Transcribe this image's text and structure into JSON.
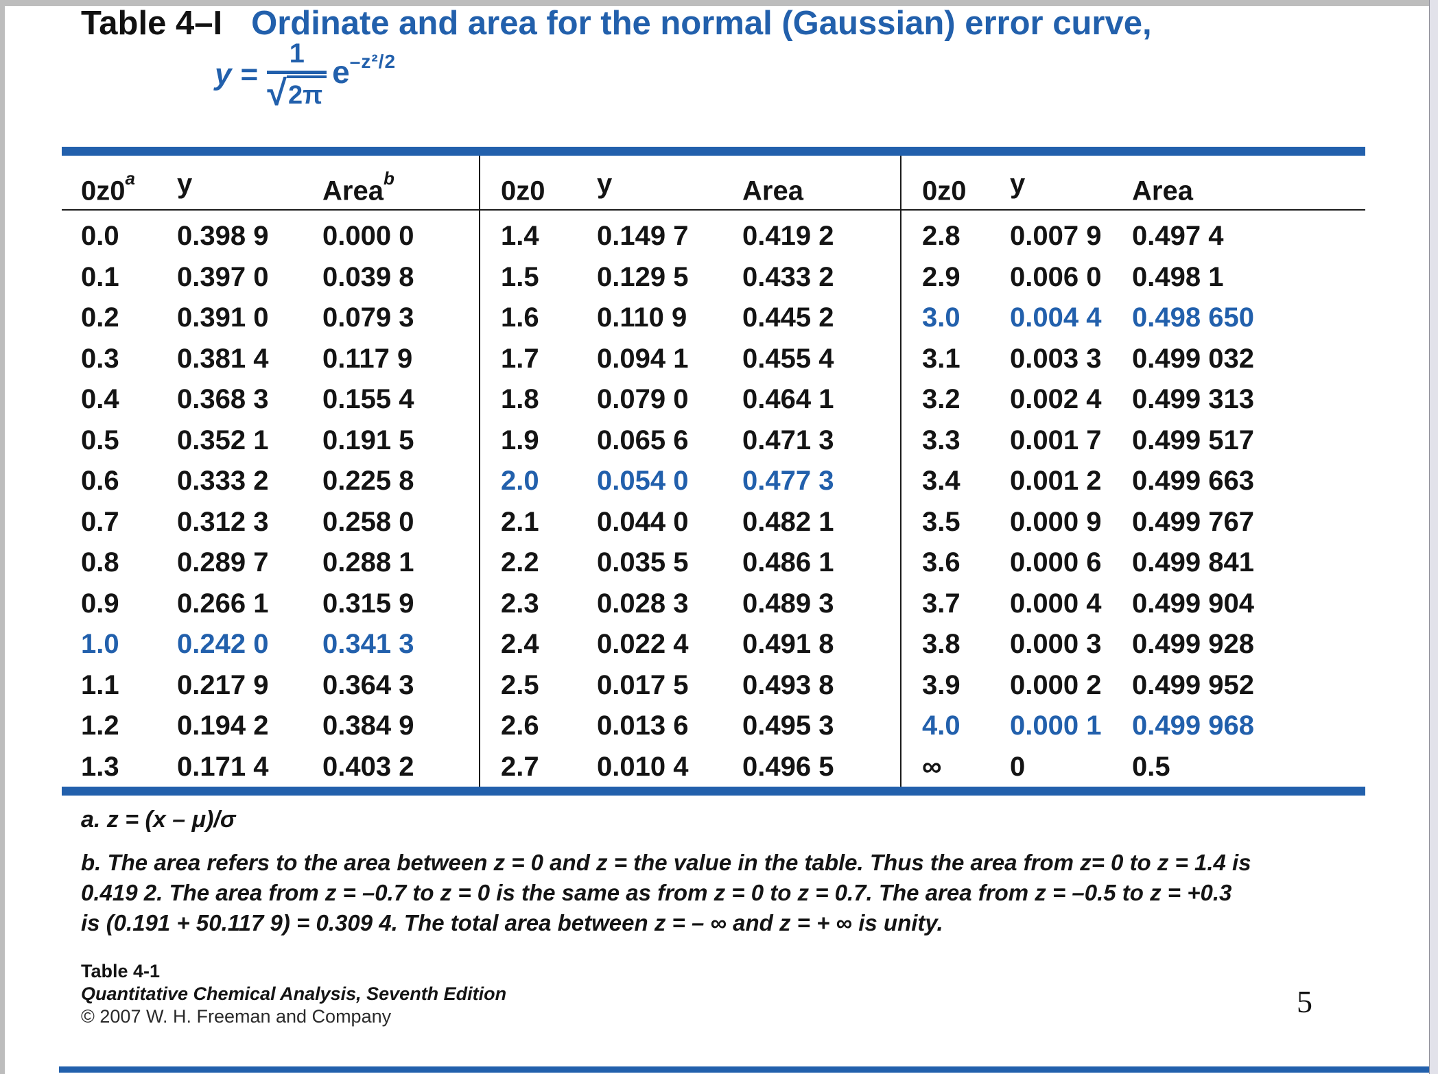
{
  "title": {
    "label": "Table 4–I",
    "text": "Ordinate and area for the normal (Gaussian) error curve,"
  },
  "formula": {
    "lhs": "y =",
    "numerator": "1",
    "radical": "√",
    "radicand": "2π",
    "exp_base": "e",
    "exponent": "–z²/2"
  },
  "table": {
    "groups": [
      {
        "headers": {
          "z": "0z0",
          "z_sup": "a",
          "y": "y",
          "area": "Area",
          "area_sup": "b"
        },
        "rows": [
          {
            "z": "0.0",
            "y": "0.398 9",
            "area": "0.000 0",
            "hl": false
          },
          {
            "z": "0.1",
            "y": "0.397 0",
            "area": "0.039 8",
            "hl": false
          },
          {
            "z": "0.2",
            "y": "0.391 0",
            "area": "0.079 3",
            "hl": false
          },
          {
            "z": "0.3",
            "y": "0.381 4",
            "area": "0.117 9",
            "hl": false
          },
          {
            "z": "0.4",
            "y": "0.368 3",
            "area": "0.155 4",
            "hl": false
          },
          {
            "z": "0.5",
            "y": "0.352 1",
            "area": "0.191 5",
            "hl": false
          },
          {
            "z": "0.6",
            "y": "0.333 2",
            "area": "0.225 8",
            "hl": false
          },
          {
            "z": "0.7",
            "y": "0.312 3",
            "area": "0.258 0",
            "hl": false
          },
          {
            "z": "0.8",
            "y": "0.289 7",
            "area": "0.288 1",
            "hl": false
          },
          {
            "z": "0.9",
            "y": "0.266 1",
            "area": "0.315 9",
            "hl": false
          },
          {
            "z": "1.0",
            "y": "0.242 0",
            "area": "0.341 3",
            "hl": true
          },
          {
            "z": "1.1",
            "y": "0.217 9",
            "area": "0.364 3",
            "hl": false
          },
          {
            "z": "1.2",
            "y": "0.194 2",
            "area": "0.384 9",
            "hl": false
          },
          {
            "z": "1.3",
            "y": "0.171 4",
            "area": "0.403 2",
            "hl": false
          }
        ]
      },
      {
        "headers": {
          "z": "0z0",
          "z_sup": "",
          "y": "y",
          "area": "Area",
          "area_sup": ""
        },
        "rows": [
          {
            "z": "1.4",
            "y": "0.149 7",
            "area": "0.419 2",
            "hl": false
          },
          {
            "z": "1.5",
            "y": "0.129 5",
            "area": "0.433 2",
            "hl": false
          },
          {
            "z": "1.6",
            "y": "0.110 9",
            "area": "0.445 2",
            "hl": false
          },
          {
            "z": "1.7",
            "y": "0.094 1",
            "area": "0.455 4",
            "hl": false
          },
          {
            "z": "1.8",
            "y": "0.079 0",
            "area": "0.464 1",
            "hl": false
          },
          {
            "z": "1.9",
            "y": "0.065 6",
            "area": "0.471 3",
            "hl": false
          },
          {
            "z": "2.0",
            "y": "0.054 0",
            "area": "0.477 3",
            "hl": true
          },
          {
            "z": "2.1",
            "y": "0.044 0",
            "area": "0.482 1",
            "hl": false
          },
          {
            "z": "2.2",
            "y": "0.035 5",
            "area": "0.486 1",
            "hl": false
          },
          {
            "z": "2.3",
            "y": "0.028 3",
            "area": "0.489 3",
            "hl": false
          },
          {
            "z": "2.4",
            "y": "0.022 4",
            "area": "0.491 8",
            "hl": false
          },
          {
            "z": "2.5",
            "y": "0.017 5",
            "area": "0.493 8",
            "hl": false
          },
          {
            "z": "2.6",
            "y": "0.013 6",
            "area": "0.495 3",
            "hl": false
          },
          {
            "z": "2.7",
            "y": "0.010 4",
            "area": "0.496 5",
            "hl": false
          }
        ]
      },
      {
        "headers": {
          "z": "0z0",
          "z_sup": "",
          "y": "y",
          "area": "Area",
          "area_sup": ""
        },
        "rows": [
          {
            "z": "2.8",
            "y": "0.007 9",
            "area": "0.497 4",
            "hl": false
          },
          {
            "z": "2.9",
            "y": "0.006 0",
            "area": "0.498 1",
            "hl": false
          },
          {
            "z": "3.0",
            "y": "0.004 4",
            "area": "0.498 650",
            "hl": true
          },
          {
            "z": "3.1",
            "y": "0.003 3",
            "area": "0.499 032",
            "hl": false
          },
          {
            "z": "3.2",
            "y": "0.002 4",
            "area": "0.499 313",
            "hl": false
          },
          {
            "z": "3.3",
            "y": "0.001 7",
            "area": "0.499 517",
            "hl": false
          },
          {
            "z": "3.4",
            "y": "0.001 2",
            "area": "0.499 663",
            "hl": false
          },
          {
            "z": "3.5",
            "y": "0.000 9",
            "area": "0.499 767",
            "hl": false
          },
          {
            "z": "3.6",
            "y": "0.000 6",
            "area": "0.499 841",
            "hl": false
          },
          {
            "z": "3.7",
            "y": "0.000 4",
            "area": "0.499 904",
            "hl": false
          },
          {
            "z": "3.8",
            "y": "0.000 3",
            "area": "0.499 928",
            "hl": false
          },
          {
            "z": "3.9",
            "y": "0.000 2",
            "area": "0.499 952",
            "hl": false
          },
          {
            "z": "4.0",
            "y": "0.000 1",
            "area": "0.499 968",
            "hl": true
          },
          {
            "z": "∞",
            "y": "0",
            "area": "0.5",
            "hl": false
          }
        ]
      }
    ]
  },
  "footnotes": {
    "a": "a. z = (x – μ)/σ",
    "b_lines": [
      "b. The area refers to the area between z = 0 and z = the value in the table. Thus the area from z= 0 to z = 1.4 is",
      "0.419 2. The area from z = –0.7 to z = 0 is the same as from z = 0 to z = 0.7. The area from z = –0.5 to z = +0.3",
      "is (0.191 + 50.117 9) = 0.309 4. The total area between z = – ∞ and z = + ∞ is unity."
    ]
  },
  "caption": {
    "line1": "Table 4-1",
    "line2": "Quantitative Chemical Analysis, Seventh Edition",
    "line3": "© 2007 W. H. Freeman and Company"
  },
  "page_number": "5",
  "colors": {
    "accent_blue": "#2260ac"
  }
}
